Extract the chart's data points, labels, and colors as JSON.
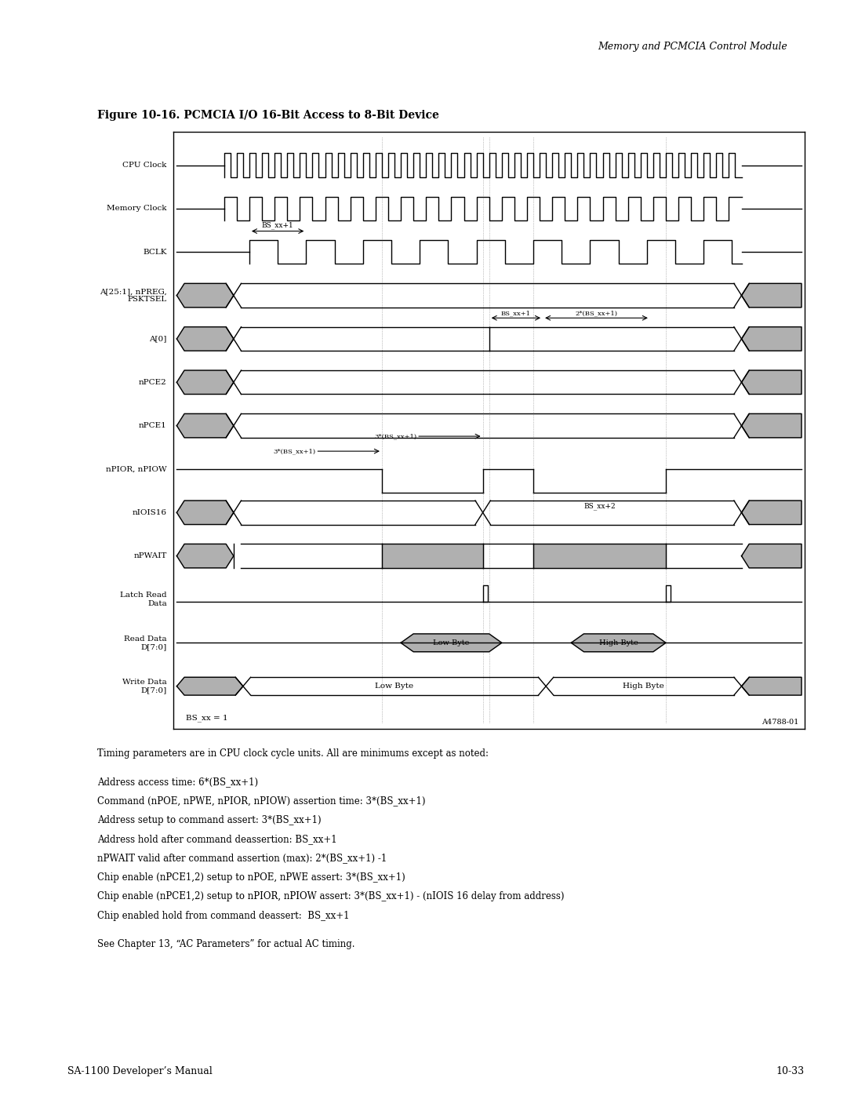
{
  "title": "Figure 10-16. PCMCIA I/O 16-Bit Access to 8-Bit Device",
  "header_italic": "Memory and PCMCIA Control Module",
  "footer_left": "SA-1100 Developer’s Manual",
  "footer_right": "10-33",
  "fig_id": "A4788-01",
  "bs_note": "BS_xx = 1",
  "body_text": [
    "Timing parameters are in CPU clock cycle units. All are minimums except as noted:",
    "",
    "Address access time: 6*(BS_xx+1)",
    "Command (nPOE, nPWE, nPIOR, nPIOW) assertion time: 3*(BS_xx+1)",
    "Address setup to command assert: 3*(BS_xx+1)",
    "Address hold after command deassertion: BS_xx+1",
    "nPWAIT valid after command assertion (max): 2*(BS_xx+1) -1",
    "Chip enable (nPCE1,2) setup to nPOE, nPWE assert: 3*(BS_xx+1)",
    "Chip enable (nPCE1,2) setup to nPIOR, nPIOW assert: 3*(BS_xx+1) - (nIOIS 16 delay from address)",
    "Chip enabled hold from command deassert:  BS_xx+1",
    "",
    "See Chapter 13, “AC Parameters” for actual AC timing."
  ],
  "bg_color": "#ffffff",
  "gray_color": "#b0b0b0",
  "line_color": "#000000"
}
